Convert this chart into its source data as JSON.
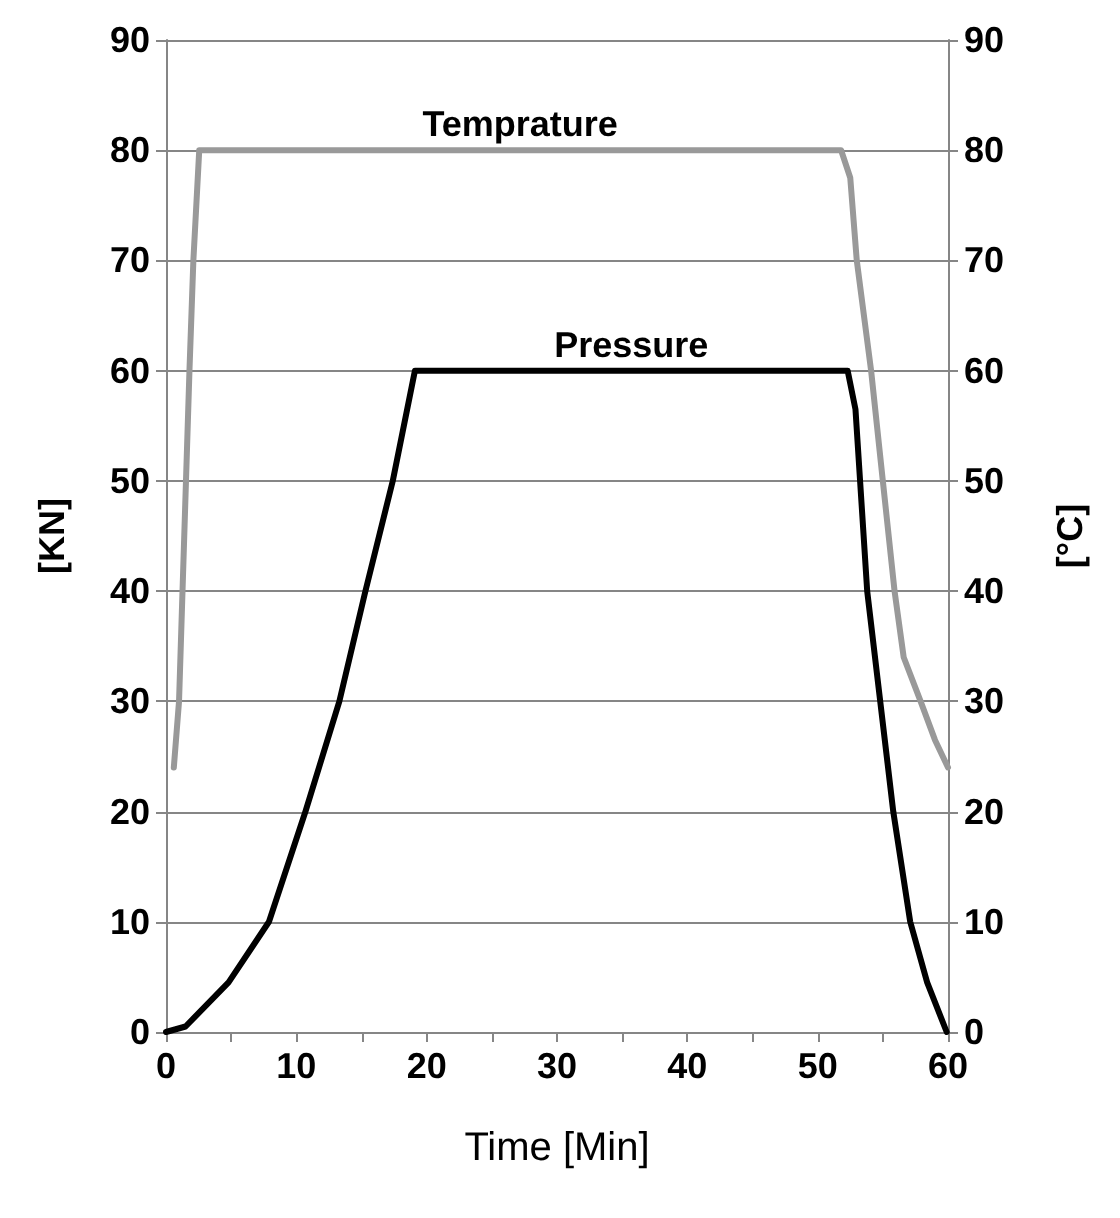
{
  "chart_data": {
    "type": "line",
    "xlabel": "Time [Min]",
    "ylabel": "[KN]",
    "y2label": "[°C]",
    "xlim": [
      0,
      60
    ],
    "xticks": [
      0,
      {
        "value": 5,
        "label": null
      },
      10,
      {
        "value": 15,
        "label": null
      },
      20,
      {
        "value": 25,
        "label": null
      },
      30,
      {
        "value": 35,
        "label": null
      },
      40,
      {
        "value": 45,
        "label": null
      },
      50,
      {
        "value": 55,
        "label": null
      },
      60
    ],
    "ylim": [
      0,
      90
    ],
    "yticks": [
      0,
      10,
      20,
      30,
      40,
      50,
      60,
      70,
      80,
      90
    ],
    "y2lim": [
      0,
      90
    ],
    "y2ticks": [
      0,
      10,
      20,
      30,
      40,
      50,
      60,
      70,
      80,
      90
    ],
    "grid": "y",
    "legend": false,
    "marker": "none",
    "line_style": "solid",
    "series": [
      {
        "name": "Temprature",
        "color": "#999999",
        "axis": "y2",
        "x": [
          0.6,
          1.0,
          1.8,
          2.1,
          2.55,
          51.8,
          52.5,
          53.0,
          54.1,
          55.0,
          55.9,
          56.6,
          57.9,
          59.0,
          60.0
        ],
        "values": [
          24,
          30,
          60,
          70,
          80,
          80,
          77.5,
          70,
          60,
          50,
          40,
          34,
          30,
          26.5,
          24
        ]
      },
      {
        "name": "Pressure",
        "color": "#000000",
        "x": [
          0,
          1.5,
          4.8,
          7.9,
          10.7,
          13.3,
          15.3,
          17.4,
          19.1,
          52.3,
          52.9,
          53.8,
          54.8,
          55.8,
          57.1,
          58.4,
          59.9
        ],
        "values": [
          0,
          0.5,
          4.5,
          10,
          20,
          30,
          40,
          50,
          60,
          60,
          56.5,
          40,
          30,
          20,
          10,
          4.5,
          0
        ]
      }
    ]
  }
}
